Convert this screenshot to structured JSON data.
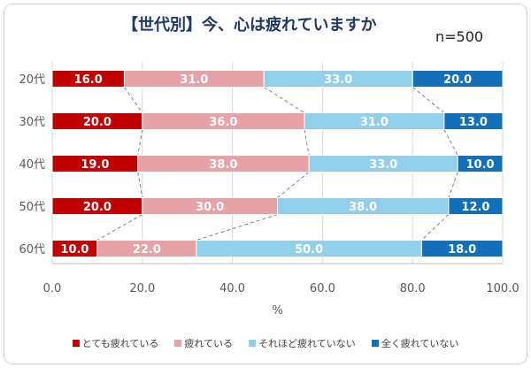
{
  "chart_data": {
    "type": "bar",
    "orientation": "horizontal",
    "stacked": true,
    "title": "【世代別】今、心は疲れていますか",
    "sample_size_label": "n=500",
    "categories": [
      "20代",
      "30代",
      "40代",
      "50代",
      "60代"
    ],
    "series": [
      {
        "name": "とても疲れている",
        "color": "#c00000",
        "values": [
          16.0,
          20.0,
          19.0,
          20.0,
          10.0
        ]
      },
      {
        "name": "疲れている",
        "color": "#e6a2a6",
        "values": [
          31.0,
          36.0,
          38.0,
          30.0,
          22.0
        ]
      },
      {
        "name": "それほど疲れていない",
        "color": "#92cfea",
        "values": [
          33.0,
          31.0,
          33.0,
          38.0,
          50.0
        ]
      },
      {
        "name": "全く疲れていない",
        "color": "#1170b8",
        "values": [
          20.0,
          13.0,
          10.0,
          12.0,
          18.0
        ]
      }
    ],
    "xlabel": "%",
    "xlim": [
      0,
      100
    ],
    "xticks": [
      "0.0",
      "20.0",
      "40.0",
      "60.0",
      "80.0",
      "100.0"
    ],
    "value_format_decimals": 1,
    "legend_position": "bottom",
    "grid": true,
    "connector_lines": "dashed"
  }
}
